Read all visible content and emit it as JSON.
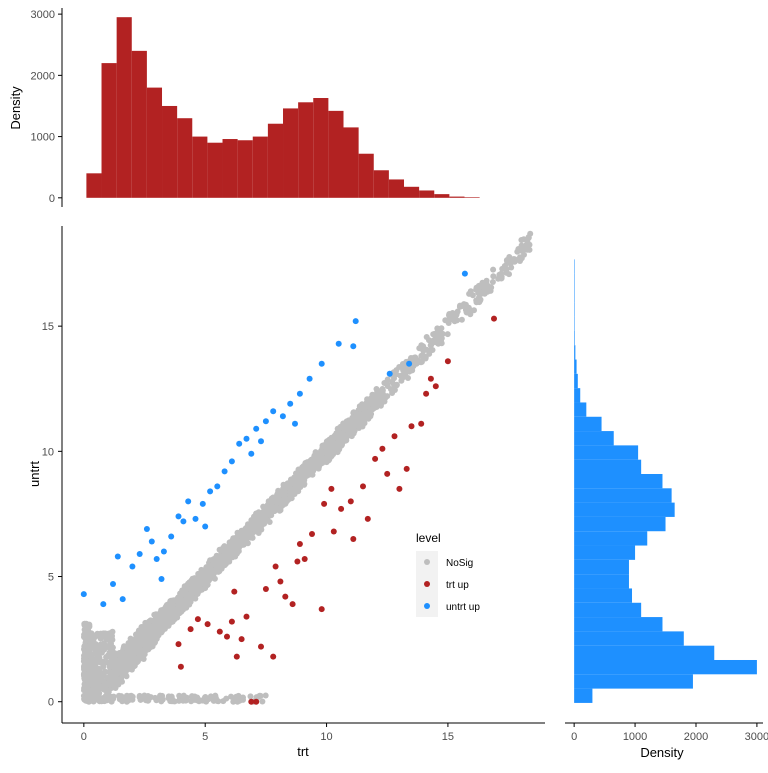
{
  "colors": {
    "nosig": "#bebebe",
    "trt_up": "#b22222",
    "untrt_up": "#1e90ff",
    "axis": "#000000",
    "legend_key_bg": "#f2f2f2"
  },
  "chart_data": [
    {
      "id": "top-histogram",
      "type": "bar",
      "description": "Marginal histogram of trt",
      "xlabel": "",
      "ylabel": "Density",
      "xlim": [
        -1.0,
        18.8
      ],
      "ylim": [
        -150,
        3100
      ],
      "yticks": [
        0,
        1000,
        2000,
        3000
      ],
      "ytick_labels": [
        "0",
        "1000",
        "2000",
        "3000"
      ],
      "bin_width": 0.62,
      "bin_start": 0.0,
      "values": [
        400,
        2200,
        2950,
        2400,
        1800,
        1500,
        1300,
        1000,
        900,
        960,
        940,
        1000,
        1210,
        1460,
        1560,
        1630,
        1420,
        1150,
        720,
        450,
        300,
        180,
        120,
        60,
        20,
        10
      ],
      "color": "#b22222"
    },
    {
      "id": "right-histogram",
      "type": "bar",
      "description": "Marginal horizontal histogram of untrt",
      "xlabel": "Density",
      "ylabel": "",
      "xlim": [
        -150,
        3100
      ],
      "ylim": [
        -0.8,
        19.0
      ],
      "xticks": [
        0,
        1000,
        2000,
        3000
      ],
      "xtick_labels": [
        "0",
        "1000",
        "2000",
        "3000"
      ],
      "bin_width": 0.57,
      "bin_start": 0.0,
      "values": [
        300,
        1950,
        3000,
        2300,
        1800,
        1450,
        1100,
        950,
        900,
        900,
        1000,
        1200,
        1500,
        1650,
        1600,
        1450,
        1100,
        1050,
        650,
        450,
        200,
        100,
        60,
        40,
        20,
        10,
        5,
        5,
        3,
        2,
        2
      ],
      "color": "#1e90ff"
    },
    {
      "id": "scatter",
      "type": "scatter",
      "description": "untrt vs trt expression, colored by level",
      "xlabel": "trt",
      "ylabel": "untrt",
      "xlim": [
        -0.9,
        19.0
      ],
      "ylim": [
        -0.85,
        19.0
      ],
      "xticks": [
        0,
        5,
        10,
        15
      ],
      "xtick_labels": [
        "0",
        "5",
        "10",
        "15"
      ],
      "yticks": [
        0,
        5,
        10,
        15
      ],
      "ytick_labels": [
        "0",
        "5",
        "10",
        "15"
      ],
      "legend": {
        "title": "level",
        "position": "center-right",
        "entries": [
          {
            "label": "NoSig",
            "color": "#bebebe"
          },
          {
            "label": "trt up",
            "color": "#b22222"
          },
          {
            "label": "untrt up",
            "color": "#1e90ff"
          }
        ]
      },
      "series": [
        {
          "name": "untrt up",
          "color": "#1e90ff",
          "points": [
            [
              0.0,
              4.3
            ],
            [
              0.8,
              3.9
            ],
            [
              1.2,
              4.7
            ],
            [
              1.4,
              5.8
            ],
            [
              1.6,
              4.1
            ],
            [
              2.0,
              5.4
            ],
            [
              2.3,
              5.9
            ],
            [
              2.6,
              6.9
            ],
            [
              2.8,
              6.4
            ],
            [
              3.0,
              5.7
            ],
            [
              3.3,
              6.0
            ],
            [
              3.6,
              6.6
            ],
            [
              3.9,
              7.4
            ],
            [
              4.1,
              7.2
            ],
            [
              4.3,
              8.0
            ],
            [
              4.6,
              7.3
            ],
            [
              4.9,
              7.9
            ],
            [
              5.2,
              8.4
            ],
            [
              5.5,
              8.6
            ],
            [
              5.8,
              9.2
            ],
            [
              6.1,
              9.6
            ],
            [
              6.4,
              10.3
            ],
            [
              6.7,
              10.5
            ],
            [
              7.1,
              10.9
            ],
            [
              7.5,
              11.2
            ],
            [
              7.8,
              11.6
            ],
            [
              8.2,
              11.4
            ],
            [
              8.5,
              11.9
            ],
            [
              8.9,
              12.3
            ],
            [
              9.3,
              12.9
            ],
            [
              9.8,
              13.5
            ],
            [
              10.5,
              14.3
            ],
            [
              11.1,
              14.2
            ],
            [
              11.2,
              15.2
            ],
            [
              12.6,
              13.1
            ],
            [
              13.4,
              13.5
            ],
            [
              15.7,
              17.1
            ],
            [
              3.2,
              4.9
            ],
            [
              5.0,
              7.0
            ],
            [
              6.9,
              9.9
            ],
            [
              7.3,
              10.4
            ],
            [
              8.7,
              11.1
            ]
          ]
        },
        {
          "name": "trt up",
          "color": "#b22222",
          "points": [
            [
              4.0,
              1.4
            ],
            [
              3.9,
              2.3
            ],
            [
              4.4,
              2.9
            ],
            [
              4.7,
              3.3
            ],
            [
              5.1,
              3.1
            ],
            [
              5.6,
              2.8
            ],
            [
              5.9,
              2.6
            ],
            [
              6.1,
              3.2
            ],
            [
              6.3,
              1.8
            ],
            [
              6.5,
              2.5
            ],
            [
              6.7,
              3.4
            ],
            [
              6.9,
              0.0
            ],
            [
              7.1,
              0.0
            ],
            [
              7.3,
              2.2
            ],
            [
              7.5,
              4.5
            ],
            [
              7.8,
              1.8
            ],
            [
              8.1,
              4.8
            ],
            [
              8.3,
              4.2
            ],
            [
              8.6,
              3.9
            ],
            [
              8.9,
              6.3
            ],
            [
              9.1,
              5.7
            ],
            [
              9.4,
              6.7
            ],
            [
              9.8,
              3.7
            ],
            [
              9.9,
              7.9
            ],
            [
              10.2,
              8.5
            ],
            [
              10.6,
              7.7
            ],
            [
              11.0,
              8.0
            ],
            [
              11.5,
              8.6
            ],
            [
              11.7,
              7.3
            ],
            [
              12.0,
              9.7
            ],
            [
              12.3,
              10.1
            ],
            [
              12.5,
              9.1
            ],
            [
              12.8,
              10.6
            ],
            [
              13.0,
              8.5
            ],
            [
              13.3,
              9.3
            ],
            [
              13.5,
              11.0
            ],
            [
              13.9,
              11.1
            ],
            [
              14.1,
              12.3
            ],
            [
              14.3,
              12.9
            ],
            [
              14.5,
              12.6
            ],
            [
              15.0,
              13.6
            ],
            [
              16.9,
              15.3
            ],
            [
              11.1,
              6.5
            ],
            [
              10.3,
              6.8
            ],
            [
              8.8,
              5.6
            ],
            [
              7.9,
              5.4
            ],
            [
              6.2,
              4.4
            ]
          ]
        }
      ]
    }
  ]
}
